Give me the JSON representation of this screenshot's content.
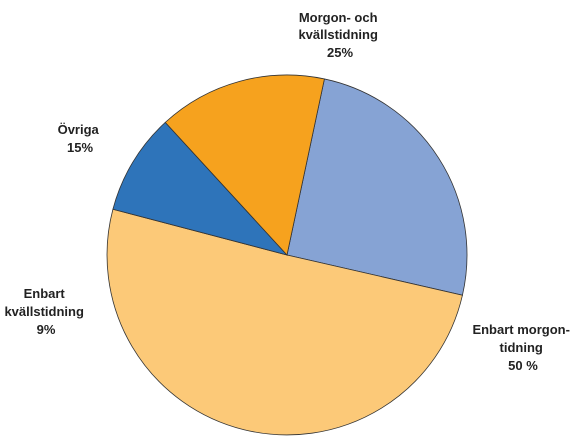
{
  "chart_data": {
    "type": "pie",
    "slices": [
      {
        "label_lines": [
          "Morgon- och",
          "kvällstidning",
          "25%"
        ],
        "value": 25,
        "color": "#86A3D4"
      },
      {
        "label_lines": [
          "Enbart morgon-",
          "tidning",
          "50 %"
        ],
        "value": 50,
        "color": "#FCC978"
      },
      {
        "label_lines": [
          "Enbart",
          "kvällstidning",
          "9%"
        ],
        "value": 9,
        "color": "#2E74BA"
      },
      {
        "label_lines": [
          "Övriga",
          "15%"
        ],
        "value": 15,
        "color": "#F6A21E"
      }
    ]
  }
}
